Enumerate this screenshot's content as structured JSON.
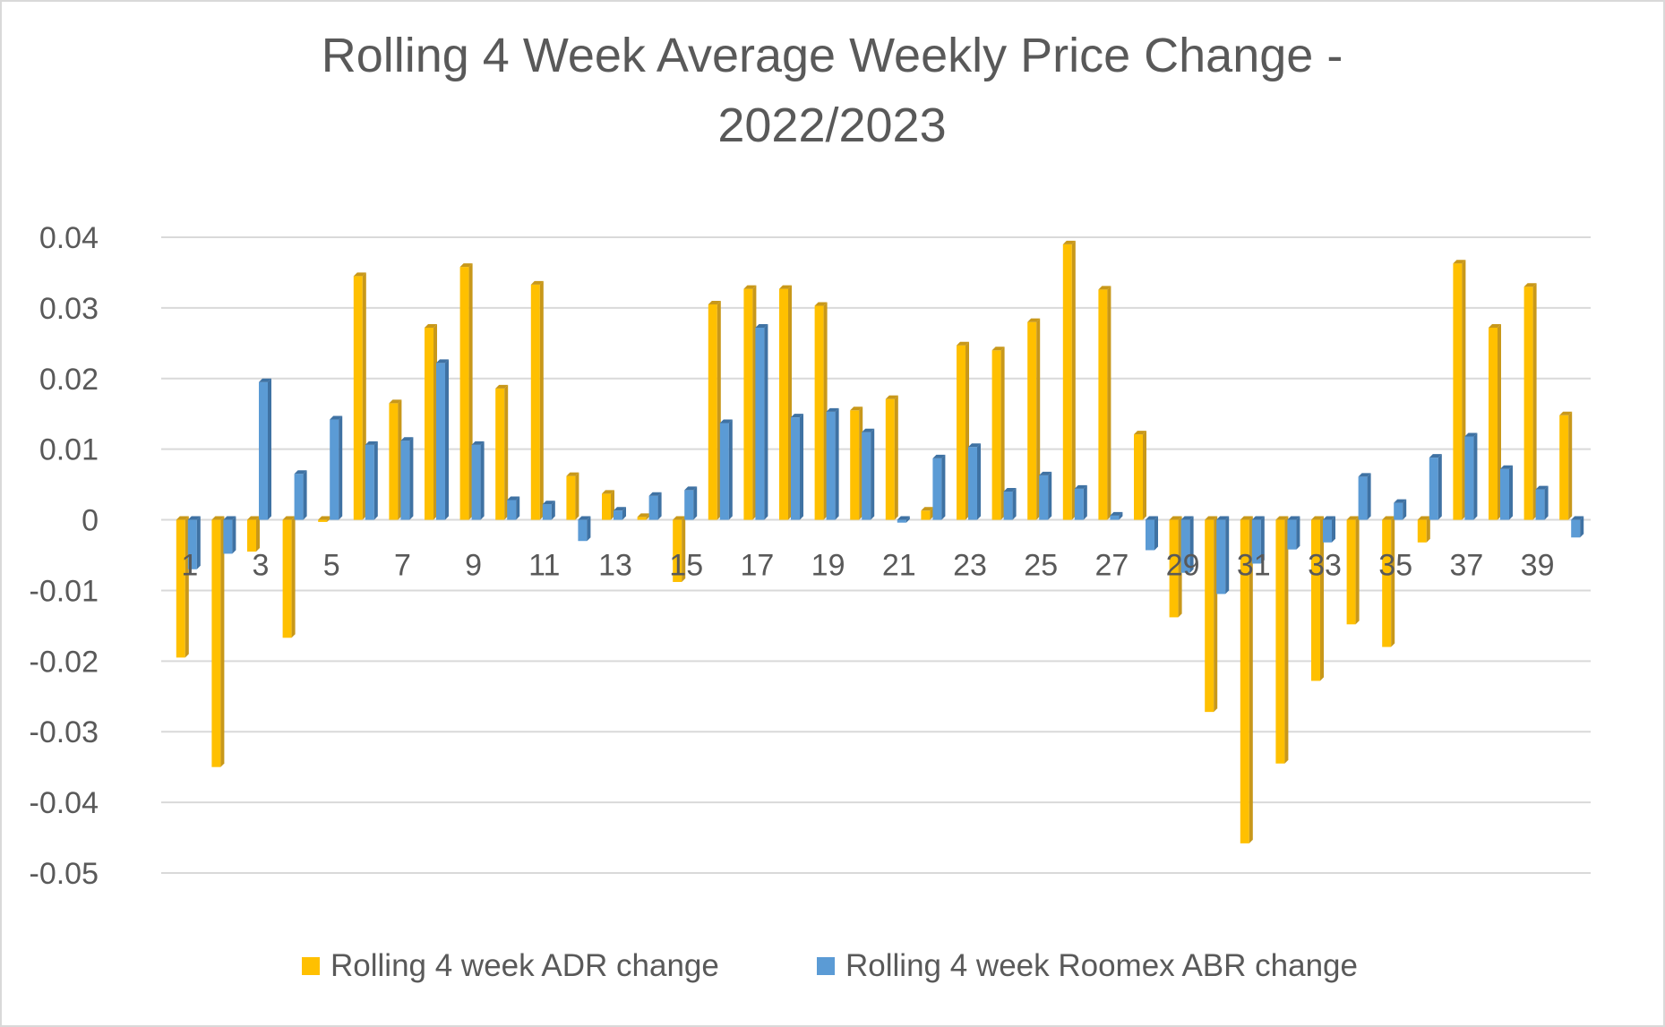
{
  "colors": {
    "series_1": "#FFC000",
    "series_1_shade": "#C8981A",
    "series_2": "#5B9BD5",
    "series_2_shade": "#3F72A3",
    "grid": "#d9d9d9",
    "text": "#595959"
  },
  "chart_data": {
    "type": "bar",
    "style": "3d-clustered-column",
    "title_lines": [
      "Rolling 4 Week Average Weekly Price Change -",
      "2022/2023"
    ],
    "xlabel": "",
    "ylabel": "",
    "ylim": [
      -0.05,
      0.04
    ],
    "y_ticks": [
      0.04,
      0.03,
      0.02,
      0.01,
      0,
      -0.01,
      -0.02,
      -0.03,
      -0.04,
      -0.05
    ],
    "y_tick_labels": [
      "0.04",
      "0.03",
      "0.02",
      "0.01",
      "0",
      "-0.01",
      "-0.02",
      "-0.03",
      "-0.04",
      "-0.05"
    ],
    "categories": [
      1,
      2,
      3,
      4,
      5,
      6,
      7,
      8,
      9,
      10,
      11,
      12,
      13,
      14,
      15,
      16,
      17,
      18,
      19,
      20,
      21,
      22,
      23,
      24,
      25,
      26,
      27,
      28,
      29,
      30,
      31,
      32,
      33,
      34,
      35,
      36,
      37,
      38,
      39,
      40
    ],
    "x_tick_labels": [
      "1",
      "3",
      "5",
      "7",
      "9",
      "11",
      "13",
      "15",
      "17",
      "19",
      "21",
      "23",
      "25",
      "27",
      "29",
      "31",
      "33",
      "35",
      "37",
      "39"
    ],
    "grid": true,
    "legend_position": "bottom",
    "series": [
      {
        "name": "Rolling 4 week ADR change",
        "values": [
          -0.0195,
          -0.035,
          -0.0045,
          -0.0167,
          -0.0003,
          0.0345,
          0.0165,
          0.0272,
          0.0358,
          0.0186,
          0.0333,
          0.0062,
          0.0037,
          0.0004,
          -0.0088,
          0.0305,
          0.0327,
          0.0327,
          0.0303,
          0.0155,
          0.0171,
          0.0013,
          0.0247,
          0.024,
          0.028,
          0.039,
          0.0326,
          0.0121,
          -0.0138,
          -0.0272,
          -0.0458,
          -0.0345,
          -0.0228,
          -0.0148,
          -0.018,
          -0.0032,
          0.0363,
          0.0272,
          0.033,
          0.0148
        ]
      },
      {
        "name": "Rolling 4 week Roomex ABR change",
        "values": [
          -0.007,
          -0.0048,
          0.0195,
          0.0065,
          0.0142,
          0.0106,
          0.0112,
          0.0222,
          0.0106,
          0.0028,
          0.0022,
          -0.003,
          0.0013,
          0.0034,
          0.0042,
          0.0137,
          0.0272,
          0.0145,
          0.0153,
          0.0124,
          -0.0004,
          0.0087,
          0.0103,
          0.004,
          0.0063,
          0.0044,
          0.0006,
          -0.0043,
          -0.0075,
          -0.0105,
          -0.0062,
          -0.0042,
          -0.0032,
          0.0061,
          0.0024,
          0.0088,
          0.0118,
          0.0072,
          0.0043,
          -0.0025
        ]
      }
    ]
  }
}
